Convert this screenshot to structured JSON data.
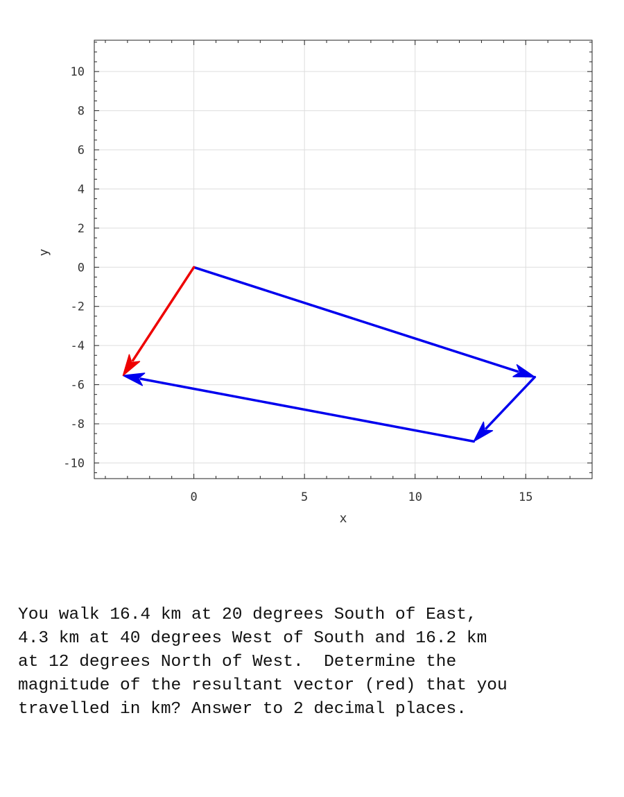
{
  "chart_data": {
    "type": "vector-plot",
    "xlabel": "x",
    "ylabel": "y",
    "xlim": [
      -4.5,
      18
    ],
    "ylim": [
      -10.8,
      11.6
    ],
    "xticks": [
      0,
      5,
      10,
      15
    ],
    "yticks": [
      -10,
      -8,
      -6,
      -4,
      -2,
      0,
      2,
      4,
      6,
      8,
      10
    ],
    "grid": true,
    "vectors": [
      {
        "from": [
          0,
          0
        ],
        "to": [
          15.41,
          -5.61
        ],
        "color": "#0000ee"
      },
      {
        "from": [
          15.41,
          -5.61
        ],
        "to": [
          12.65,
          -8.9
        ],
        "color": "#0000ee"
      },
      {
        "from": [
          12.65,
          -8.9
        ],
        "to": [
          -3.2,
          -5.53
        ],
        "color": "#0000ee"
      },
      {
        "from": [
          0,
          0
        ],
        "to": [
          -3.2,
          -5.53
        ],
        "color": "#ee0000"
      }
    ]
  },
  "question": {
    "lines": [
      "You walk 16.4 km at 20 degrees South of East,",
      "4.3 km at 40 degrees West of South and 16.2 km",
      "at 12 degrees North of West.  Determine the",
      "magnitude of the resultant vector (red) that you",
      "travelled in km? Answer to 2 decimal places."
    ]
  }
}
